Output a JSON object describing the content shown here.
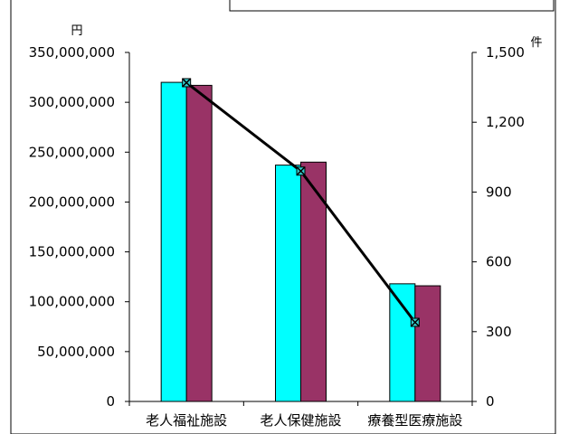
{
  "chart_data": {
    "type": "bar",
    "categories": [
      "老人福祉施設",
      "老人保健施設",
      "療養型医療施設"
    ],
    "left_axis": {
      "unit": "円",
      "ylim": [
        0,
        350000000
      ],
      "ticks": [
        0,
        50000000,
        100000000,
        150000000,
        200000000,
        250000000,
        300000000,
        350000000
      ],
      "tick_labels": [
        "0",
        "50,000,000",
        "100,000,000",
        "150,000,000",
        "200,000,000",
        "250,000,000",
        "300,000,000",
        "350,000,000"
      ]
    },
    "right_axis": {
      "unit": "件",
      "ylim": [
        0,
        1500
      ],
      "ticks": [
        0,
        300,
        600,
        900,
        1200,
        1500
      ],
      "tick_labels": [
        "0",
        "300",
        "600",
        "900",
        "1,200",
        "1,500"
      ]
    },
    "series": [
      {
        "kind": "bar",
        "axis": "left",
        "color": "#00FFFF",
        "values": [
          320000000,
          237000000,
          118000000
        ]
      },
      {
        "kind": "bar",
        "axis": "left",
        "color": "#993366",
        "values": [
          317000000,
          240000000,
          116000000
        ]
      },
      {
        "kind": "line",
        "axis": "right",
        "color": "#000000",
        "marker_color": "#33CCCC",
        "values": [
          1370,
          990,
          340
        ]
      }
    ],
    "grid": false,
    "legend": "top"
  }
}
